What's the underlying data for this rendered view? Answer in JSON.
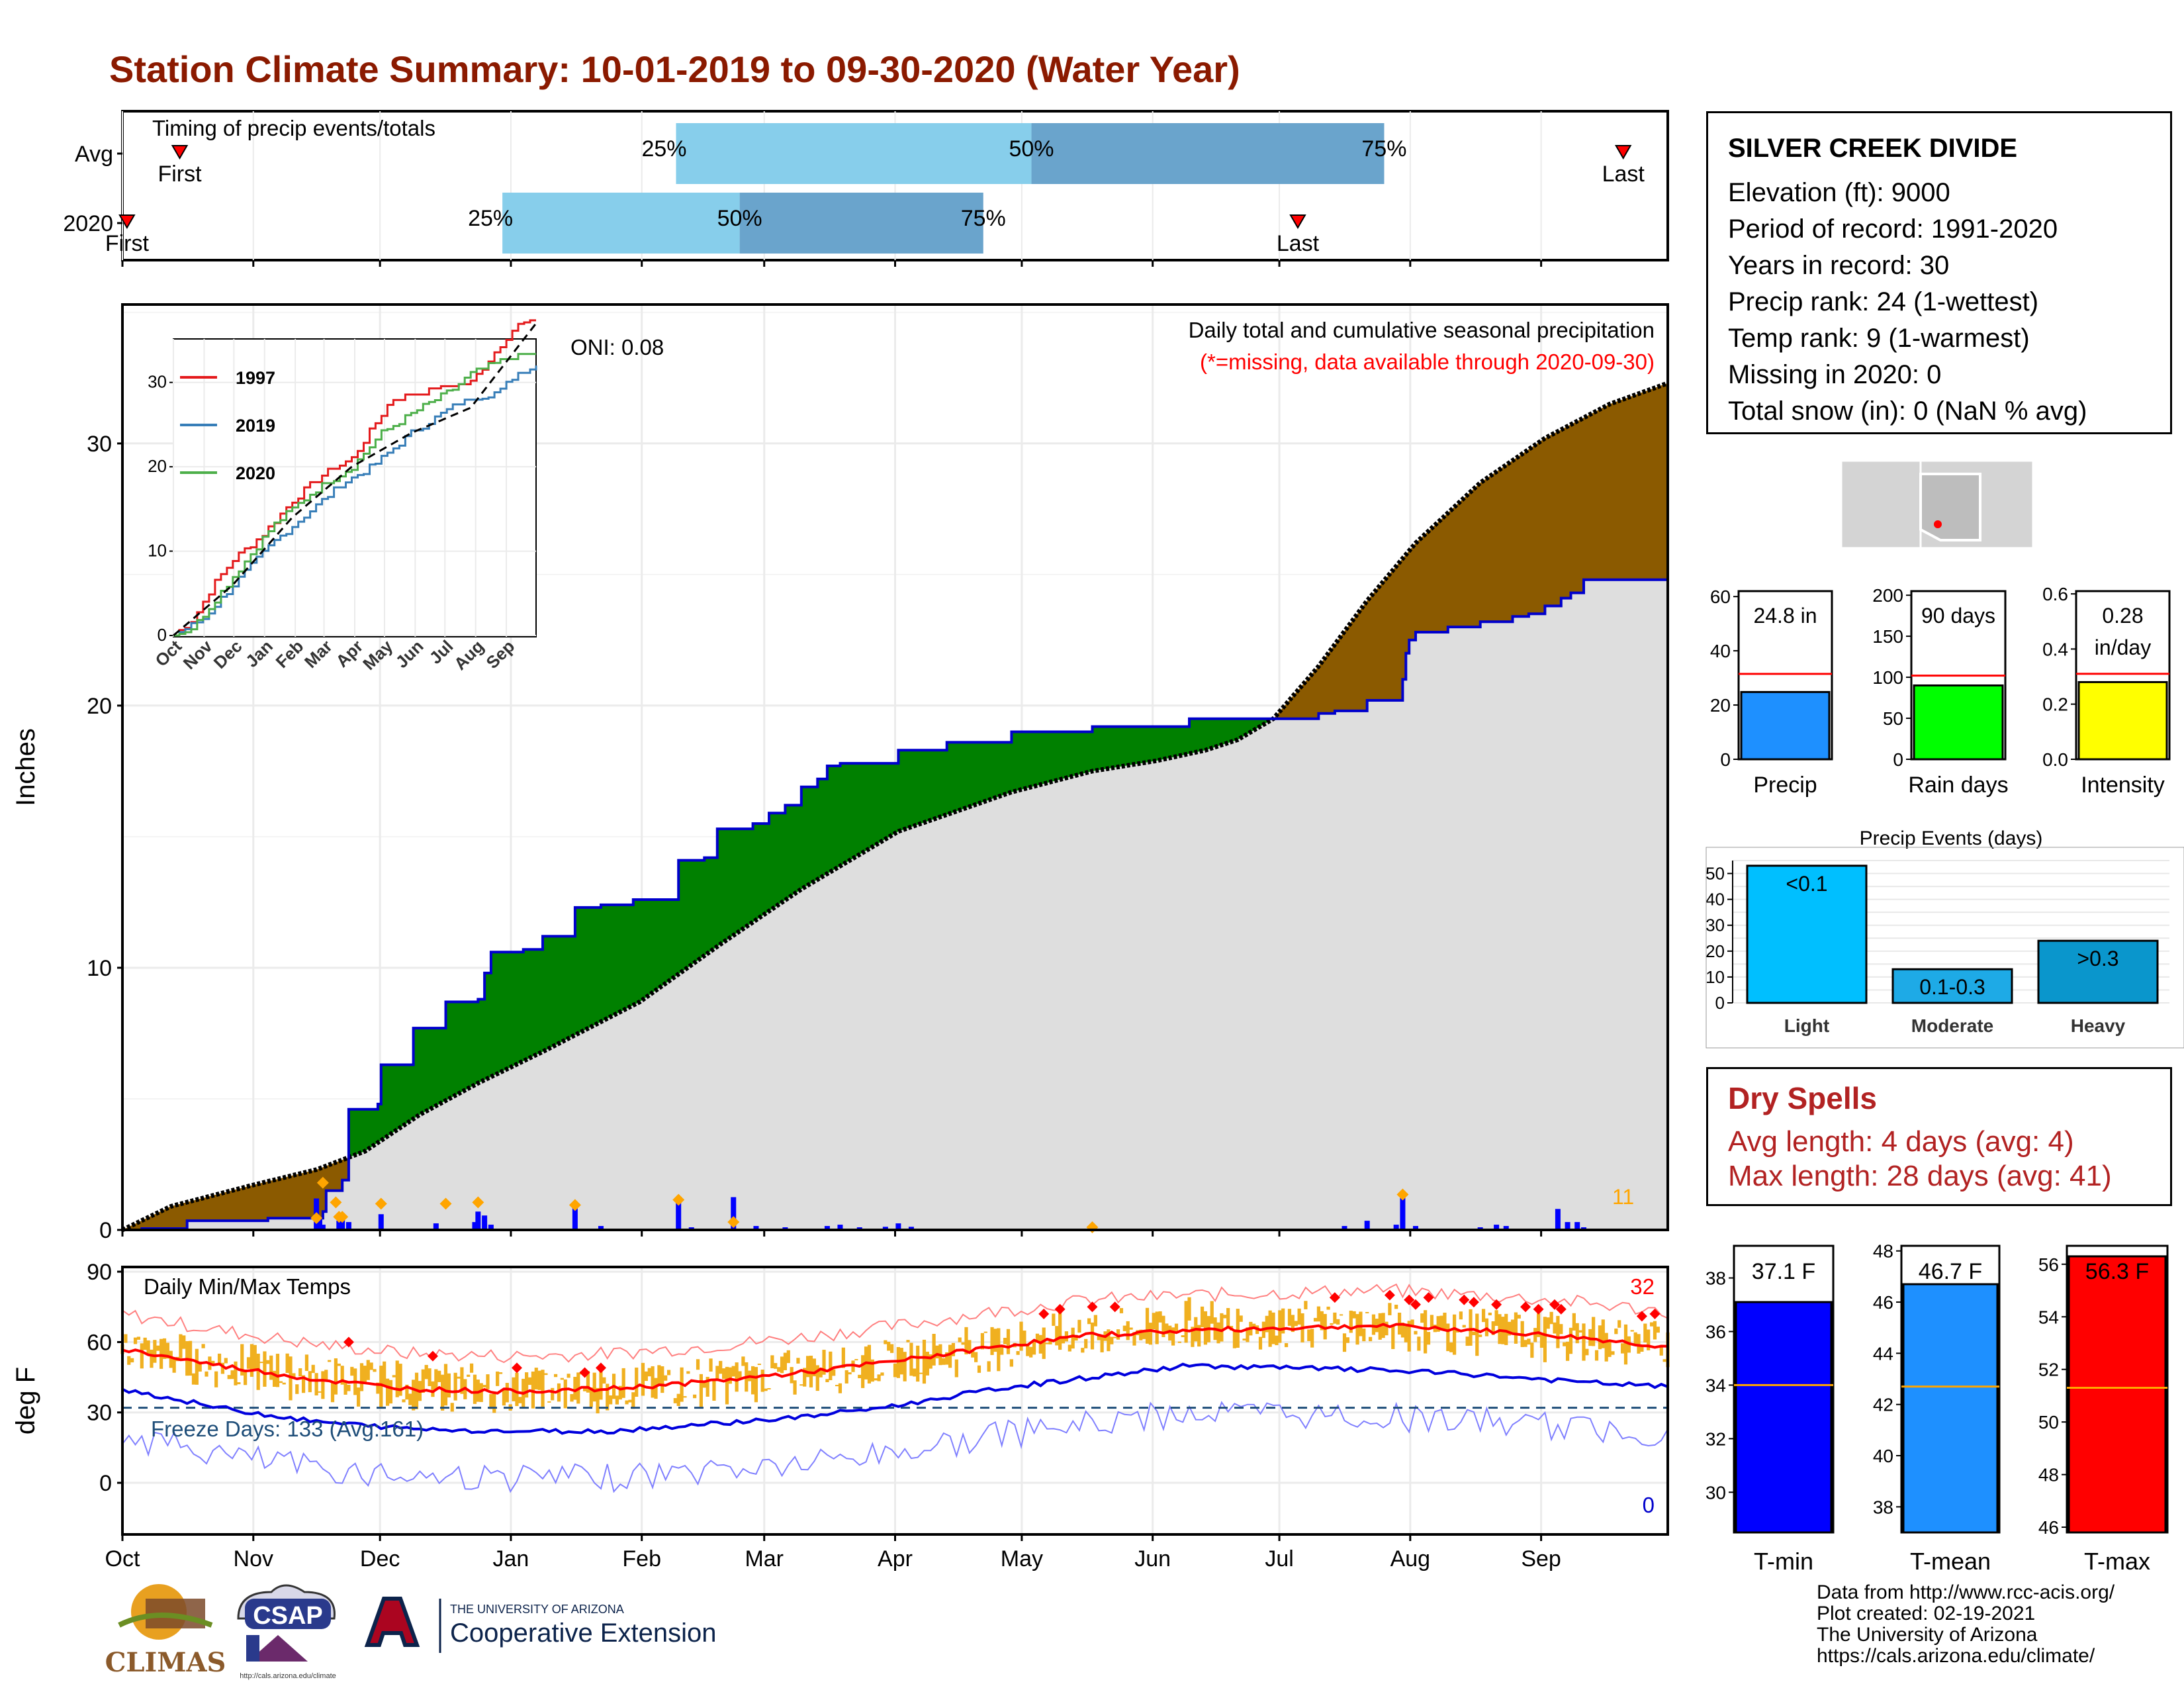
{
  "title": "Station Climate Summary: 10-01-2019 to 09-30-2020 (Water Year)",
  "timing": {
    "panel_label": "Timing of precip events/totals",
    "rows": [
      {
        "label": "Avg",
        "first_label": "First",
        "last_label": "Last",
        "first_x": 63,
        "p25_x": 609,
        "p50_x": 1000,
        "p75_x": 1388,
        "last_x": 1651
      },
      {
        "label": "2020",
        "first_label": "First",
        "last_label": "Last",
        "first_x": 5,
        "p25_x": 418,
        "p50_x": 679,
        "p75_x": 947,
        "last_x": 1293
      }
    ],
    "pct_labels": [
      "25%",
      "50%",
      "75%"
    ]
  },
  "precip": {
    "ylabel": "Inches",
    "yticks": [
      0,
      10,
      20,
      30
    ],
    "ymax": 35.3,
    "subtitle": "Daily total and cumulative seasonal precipitation",
    "missing_note": "(*=missing, data available through 2020-09-30)",
    "oni": "ONI: 0.08",
    "count_label": "11",
    "colors": {
      "above": "#8B5A00",
      "below": "#008000",
      "normal_fill": "#DEDEDE",
      "observed_line": "#0000CC",
      "bars": "#0000FF",
      "diamonds": "#FFA500"
    },
    "avg_cum_knots": [
      [
        0,
        0
      ],
      [
        15,
        0.9
      ],
      [
        40,
        1.7
      ],
      [
        60,
        2.3
      ],
      [
        75,
        3.0
      ],
      [
        92,
        4.4
      ],
      [
        110,
        5.6
      ],
      [
        130,
        6.8
      ],
      [
        160,
        8.7
      ],
      [
        185,
        10.9
      ],
      [
        210,
        13.0
      ],
      [
        240,
        15.2
      ],
      [
        275,
        16.7
      ],
      [
        300,
        17.5
      ],
      [
        320,
        17.9
      ],
      [
        335,
        18.3
      ],
      [
        345,
        18.7
      ],
      [
        356,
        19.5
      ],
      [
        370,
        21.5
      ],
      [
        385,
        24.0
      ],
      [
        400,
        26.2
      ],
      [
        420,
        28.5
      ],
      [
        440,
        30.2
      ],
      [
        460,
        31.5
      ],
      [
        478,
        32.3
      ]
    ],
    "obs_cum_steps": [
      [
        0,
        0
      ],
      [
        6,
        0.05
      ],
      [
        20,
        0.35
      ],
      [
        45,
        0.45
      ],
      [
        62,
        0.7
      ],
      [
        63,
        1.5
      ],
      [
        68,
        1.9
      ],
      [
        70,
        2.0
      ],
      [
        70,
        4.6
      ],
      [
        79,
        4.8
      ],
      [
        80,
        6.3
      ],
      [
        90,
        6.4
      ],
      [
        90,
        7.7
      ],
      [
        100,
        7.8
      ],
      [
        100,
        8.7
      ],
      [
        110,
        8.8
      ],
      [
        112,
        9.8
      ],
      [
        114,
        10.6
      ],
      [
        124,
        10.7
      ],
      [
        130,
        11.2
      ],
      [
        140,
        11.3
      ],
      [
        140,
        12.3
      ],
      [
        148,
        12.4
      ],
      [
        158,
        12.6
      ],
      [
        172,
        12.8
      ],
      [
        172,
        14.1
      ],
      [
        180,
        14.2
      ],
      [
        184,
        15.3
      ],
      [
        195,
        15.5
      ],
      [
        200,
        15.9
      ],
      [
        205,
        16.2
      ],
      [
        210,
        16.9
      ],
      [
        215,
        17.2
      ],
      [
        218,
        17.7
      ],
      [
        222,
        17.8
      ],
      [
        240,
        18.3
      ],
      [
        255,
        18.6
      ],
      [
        275,
        19.0
      ],
      [
        300,
        19.2
      ],
      [
        330,
        19.5
      ],
      [
        370,
        19.7
      ],
      [
        375,
        19.8
      ],
      [
        385,
        20.2
      ],
      [
        396,
        21.0
      ],
      [
        397,
        22.0
      ],
      [
        398,
        22.5
      ],
      [
        400,
        22.8
      ],
      [
        410,
        23.0
      ],
      [
        420,
        23.2
      ],
      [
        430,
        23.4
      ],
      [
        435,
        23.5
      ],
      [
        440,
        23.8
      ],
      [
        445,
        24.1
      ],
      [
        448,
        24.3
      ],
      [
        452,
        24.8
      ],
      [
        460,
        24.8
      ],
      [
        478,
        24.8
      ]
    ]
  },
  "inset": {
    "yticks": [
      0,
      10,
      20,
      30
    ],
    "xticks": [
      "Oct",
      "Nov",
      "Dec",
      "Jan",
      "Feb",
      "Mar",
      "Apr",
      "May",
      "Jun",
      "Jul",
      "Aug",
      "Sep"
    ],
    "legend": [
      {
        "name": "1997",
        "color": "#E41A1C"
      },
      {
        "name": "2019",
        "color": "#377EB8"
      },
      {
        "name": "2020",
        "color": "#4DAF4A"
      }
    ]
  },
  "temps": {
    "ylabel": "deg F",
    "yticks": [
      0,
      30,
      60,
      90
    ],
    "panel_label": "Daily Min/Max Temps",
    "freeze_label": "Freeze Days: 133 (Avg:161)",
    "count_hot": "32",
    "count_cold": "0",
    "freeze_line": 32,
    "avg_max_knots": [
      [
        0,
        57
      ],
      [
        30,
        50
      ],
      [
        60,
        44
      ],
      [
        90,
        40
      ],
      [
        120,
        39
      ],
      [
        150,
        40
      ],
      [
        180,
        43
      ],
      [
        210,
        47
      ],
      [
        240,
        52
      ],
      [
        270,
        58
      ],
      [
        300,
        63
      ],
      [
        330,
        65
      ],
      [
        360,
        66
      ],
      [
        390,
        67
      ],
      [
        420,
        65
      ],
      [
        450,
        62
      ],
      [
        478,
        58
      ]
    ],
    "avg_min_knots": [
      [
        0,
        40
      ],
      [
        30,
        32
      ],
      [
        60,
        26
      ],
      [
        90,
        23
      ],
      [
        120,
        22
      ],
      [
        150,
        22
      ],
      [
        180,
        25
      ],
      [
        210,
        28
      ],
      [
        240,
        33
      ],
      [
        270,
        40
      ],
      [
        300,
        45
      ],
      [
        330,
        50
      ],
      [
        360,
        49
      ],
      [
        390,
        48
      ],
      [
        420,
        46
      ],
      [
        450,
        43
      ],
      [
        478,
        41
      ]
    ]
  },
  "month_ticks": [
    "Oct",
    "Nov",
    "Dec",
    "Jan",
    "Feb",
    "Mar",
    "Apr",
    "May",
    "Jun",
    "Jul",
    "Aug",
    "Sep"
  ],
  "station": {
    "name": "SILVER CREEK DIVIDE",
    "elevation": "Elevation (ft): 9000",
    "period": "Period of record: 1991-2020",
    "years": "Years in record: 30",
    "precip_rank": "Precip rank: 24 (1-wettest)",
    "temp_rank": "Temp rank: 9 (1-warmest)",
    "missing": "Missing in 2020: 0",
    "snow": "Total snow (in): 0 (NaN % avg)"
  },
  "small_bars": [
    {
      "name": "Precip",
      "value_label": "24.8 in",
      "value": 24.8,
      "avg": 31.5,
      "ymax": 62,
      "ticks": [
        0,
        20,
        40,
        60
      ],
      "color": "#1E90FF"
    },
    {
      "name": "Rain days",
      "value_label": "90 days",
      "value": 90,
      "avg": 102,
      "ymax": 205,
      "ticks": [
        0,
        50,
        100,
        150,
        200
      ],
      "color": "#00FF00"
    },
    {
      "name": "Intensity",
      "value_label": "0.28\nin/day",
      "value": 0.28,
      "avg": 0.31,
      "ymax": 0.61,
      "ticks": [
        "0.0",
        "0.2",
        "0.4",
        "0.6"
      ],
      "color": "#FFFF00"
    }
  ],
  "events": {
    "title": "Precip Events (days)",
    "categories": [
      "Light",
      "Moderate",
      "Heavy"
    ],
    "labels": [
      "<0.1",
      "0.1-0.3",
      ">0.3"
    ],
    "values": [
      53,
      13,
      24
    ],
    "ymax": 55,
    "yticks": [
      0,
      10,
      20,
      30,
      40,
      50
    ],
    "colors": [
      "#00BFFF",
      "#1EAAE6",
      "#0A96CC"
    ]
  },
  "dry": {
    "title": "Dry Spells",
    "avg": "Avg length: 4 days (avg: 4)",
    "max": "Max length: 28 days (avg: 41)"
  },
  "temp_bars": [
    {
      "name": "T-min",
      "value_label": "37.1 F",
      "value": 37.1,
      "avg": 34.0,
      "ymin": 28.5,
      "ymax": 39.2,
      "ticks": [
        30,
        32,
        34,
        36,
        38
      ],
      "color": "#0000FF"
    },
    {
      "name": "T-mean",
      "value_label": "46.7 F",
      "value": 46.7,
      "avg": 42.7,
      "ymin": 37.0,
      "ymax": 48.2,
      "ticks": [
        38,
        40,
        42,
        44,
        46,
        48
      ],
      "color": "#1E90FF"
    },
    {
      "name": "T-max",
      "value_label": "56.3 F",
      "value": 56.3,
      "avg": 51.3,
      "ymin": 45.8,
      "ymax": 56.7,
      "ticks": [
        46,
        48,
        50,
        52,
        54,
        56
      ],
      "color": "#FF0000"
    }
  ],
  "credits": [
    "Data from http://www.rcc-acis.org/",
    "Plot created: 02-19-2021",
    "The University of Arizona",
    "https://cals.arizona.edu/climate/"
  ],
  "logos": {
    "climas": "CLIMAS",
    "csap": "CSAP",
    "csap_url": "http://cals.arizona.edu/climate",
    "ua_line1": "THE UNIVERSITY OF ARIZONA",
    "ua_line2": "Cooperative Extension"
  }
}
